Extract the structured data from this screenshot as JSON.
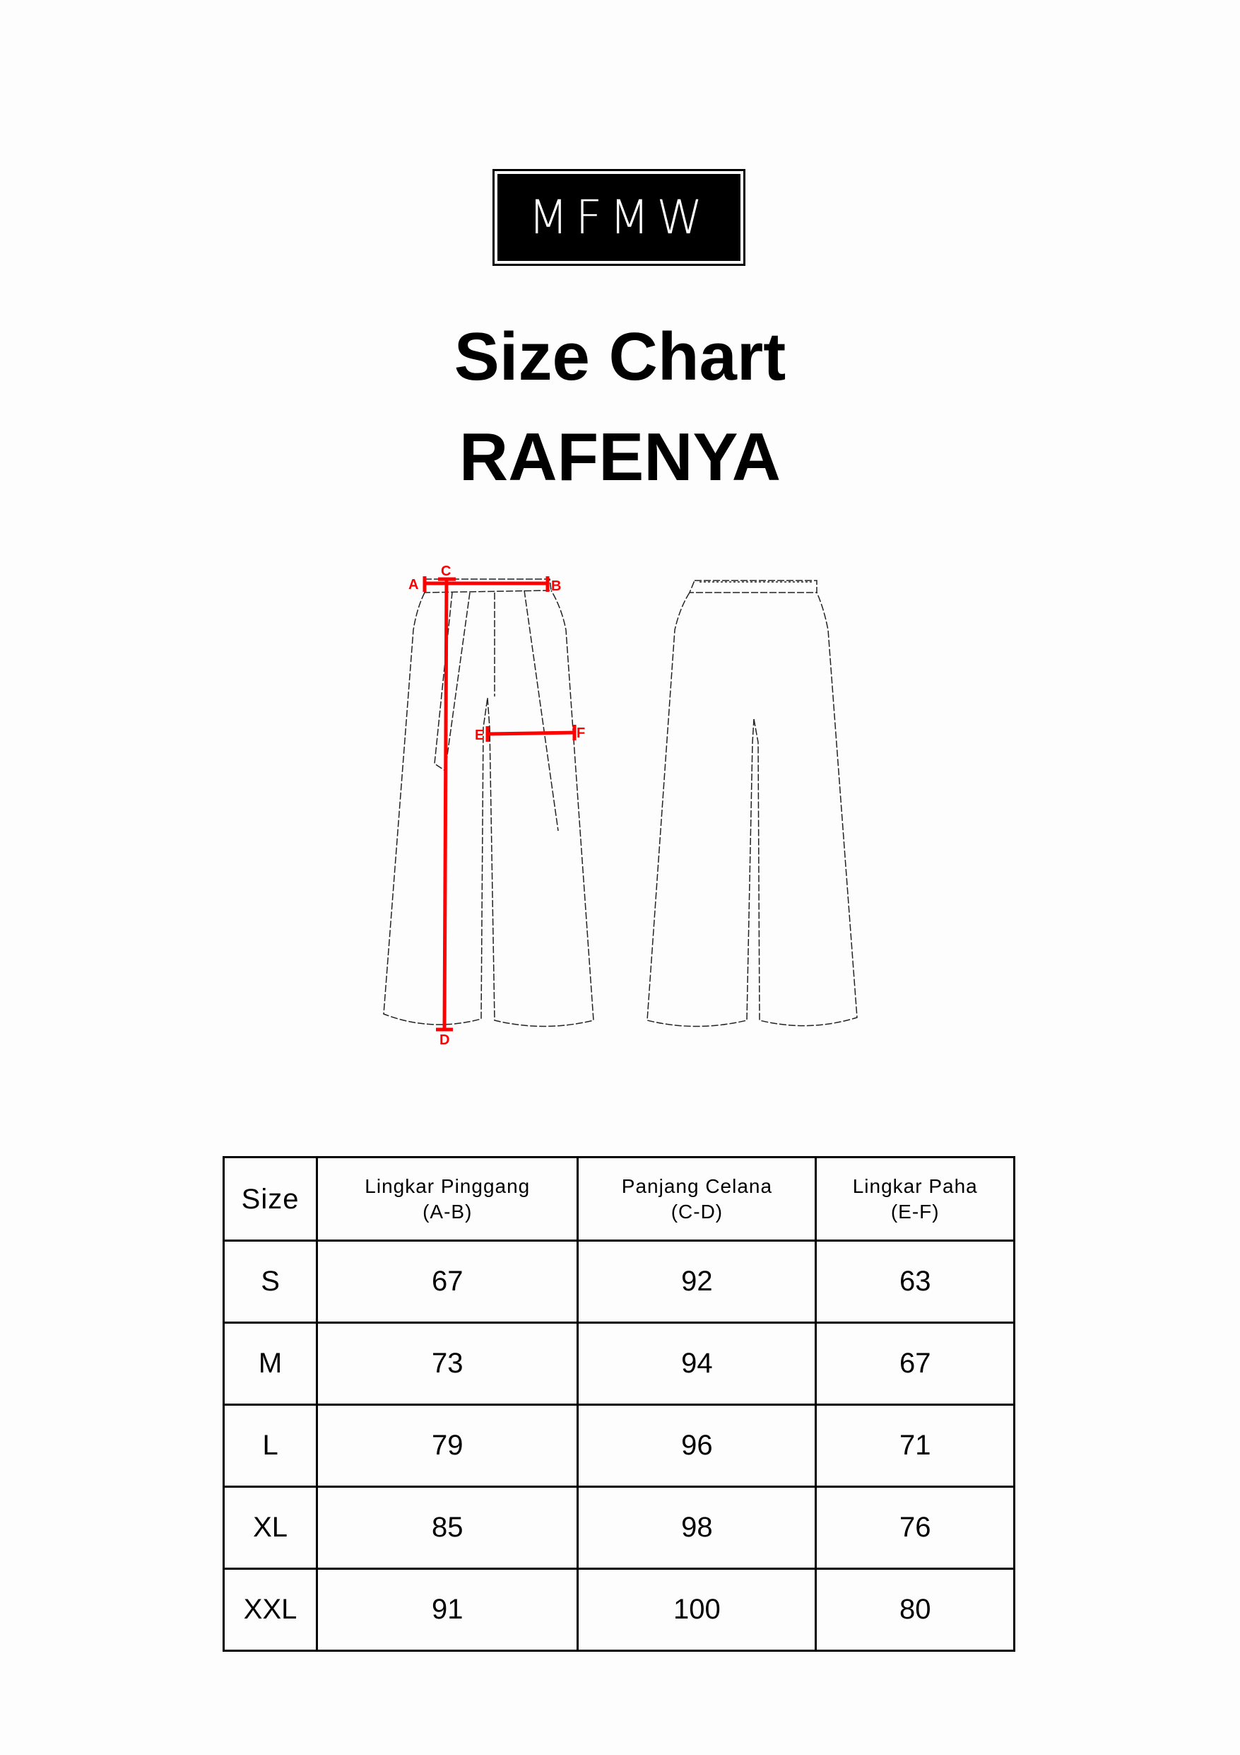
{
  "logo": "MFMW",
  "title": "Size Chart",
  "product": "RAFENYA",
  "diagram": {
    "labels": [
      "A",
      "B",
      "C",
      "D",
      "E",
      "F"
    ],
    "measure_color": "#ff0000"
  },
  "table": {
    "headers": [
      {
        "line1": "Size",
        "line2": ""
      },
      {
        "line1": "Lingkar Pinggang",
        "line2": "(A-B)"
      },
      {
        "line1": "Panjang Celana",
        "line2": "(C-D)"
      },
      {
        "line1": "Lingkar Paha",
        "line2": "(E-F)"
      }
    ],
    "rows": [
      [
        "S",
        "67",
        "92",
        "63"
      ],
      [
        "M",
        "73",
        "94",
        "67"
      ],
      [
        "L",
        "79",
        "96",
        "71"
      ],
      [
        "XL",
        "85",
        "98",
        "76"
      ],
      [
        "XXL",
        "91",
        "100",
        "80"
      ]
    ]
  }
}
